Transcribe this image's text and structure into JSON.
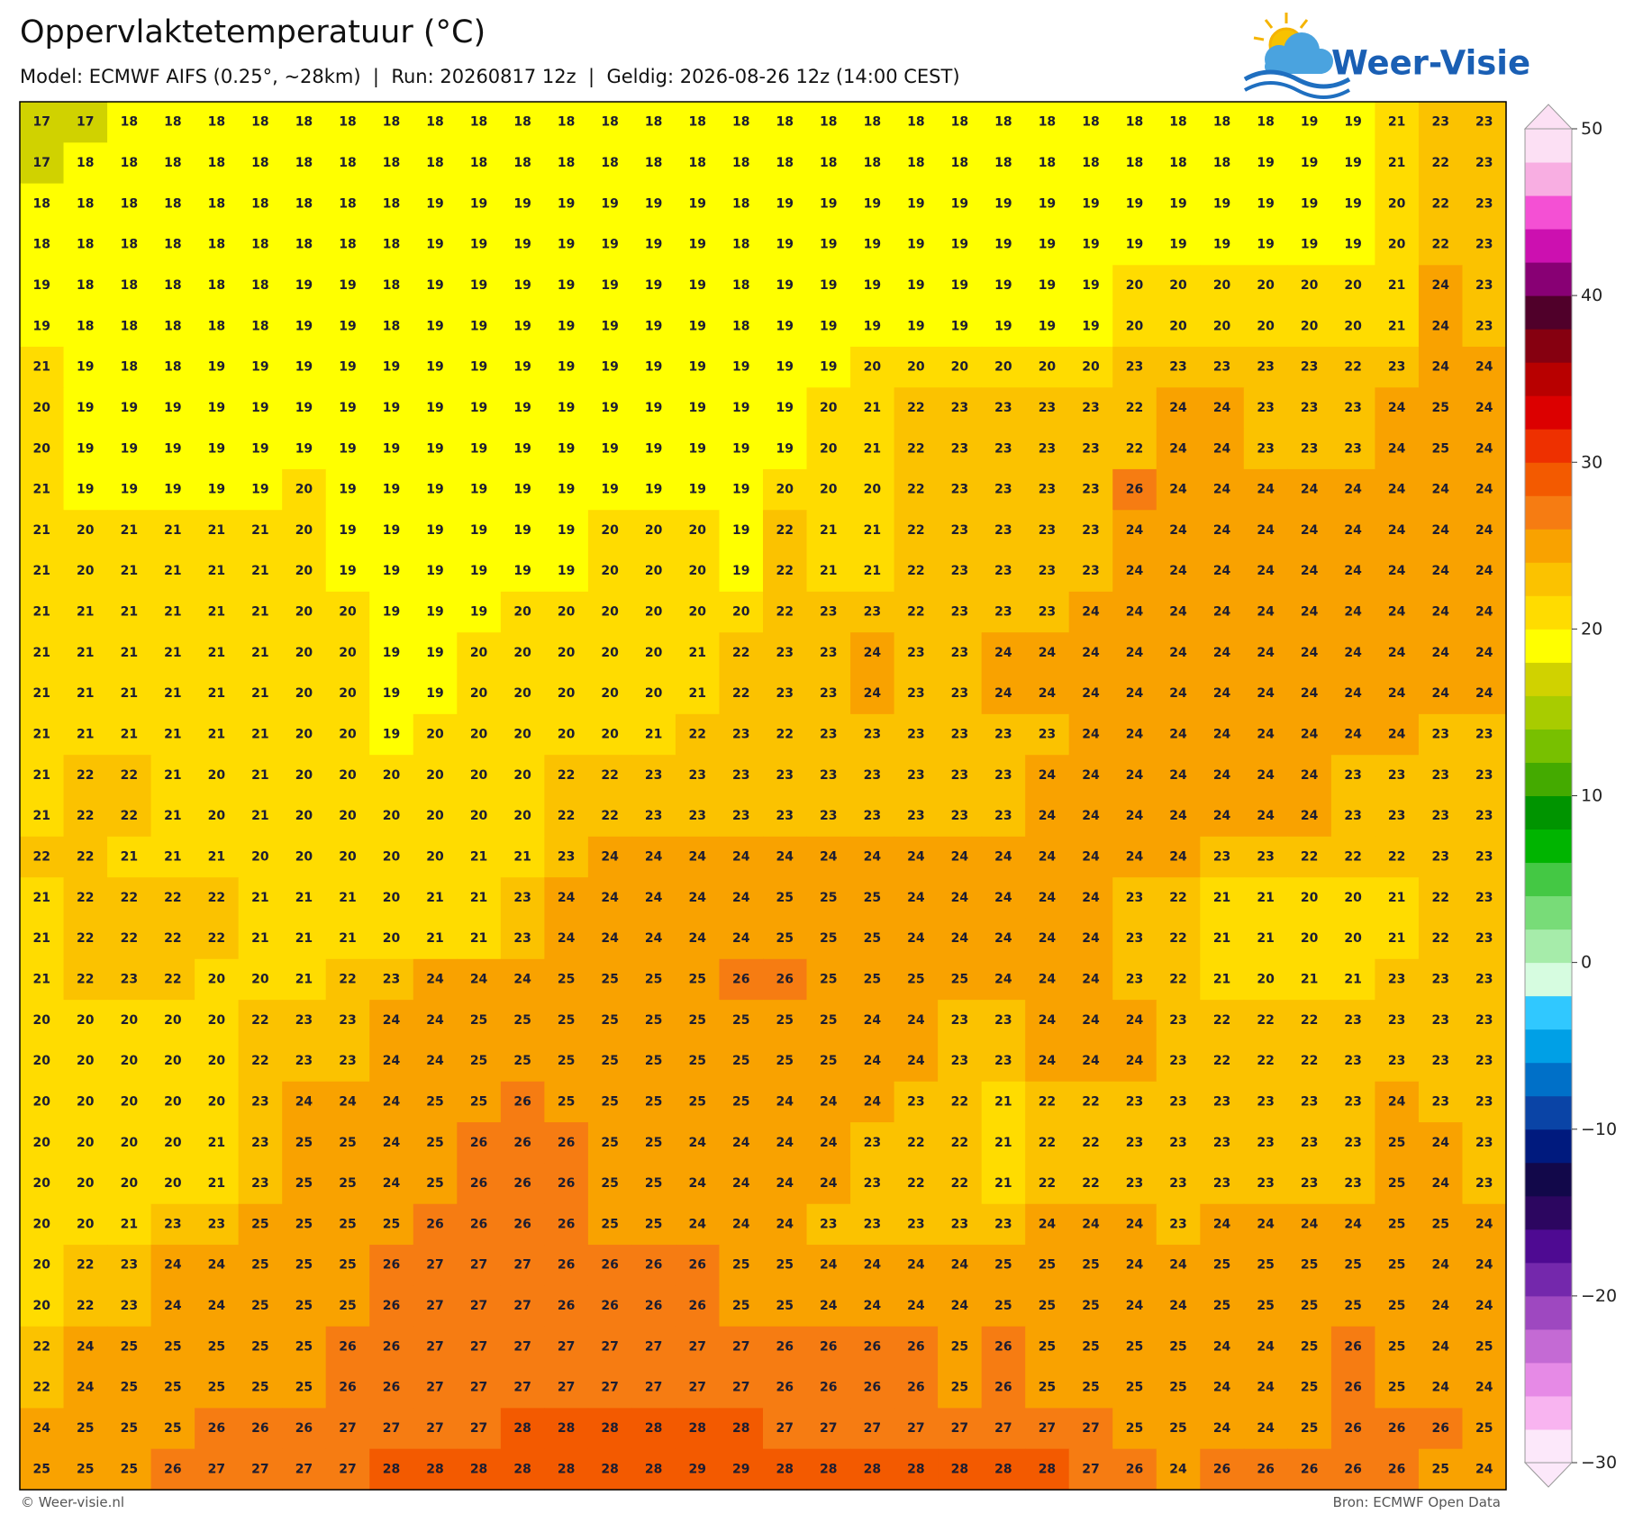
{
  "title": "Oppervlaktetemperatuur (°C)",
  "subtitle": "Model: ECMWF AIFS (0.25°, ~28km)  |  Run: 20260817 12z  |  Geldig: 2026-08-26 12z (14:00 CEST)",
  "logo": "Weer-Visie",
  "map": {
    "type": "grid",
    "values": [
      [
        17,
        17,
        18,
        18,
        18,
        18,
        18,
        18,
        18,
        18,
        18,
        18,
        18,
        18,
        18,
        18,
        18,
        18,
        18,
        18,
        18,
        18,
        18,
        18,
        18,
        18,
        18,
        18,
        18,
        19,
        19,
        21,
        23,
        23
      ],
      [
        17,
        18,
        18,
        18,
        18,
        18,
        18,
        18,
        18,
        18,
        18,
        18,
        18,
        18,
        18,
        18,
        18,
        18,
        18,
        18,
        18,
        18,
        18,
        18,
        18,
        18,
        18,
        18,
        19,
        19,
        19,
        21,
        22,
        23
      ],
      [
        18,
        18,
        18,
        18,
        18,
        18,
        18,
        18,
        18,
        19,
        19,
        19,
        19,
        19,
        19,
        19,
        18,
        19,
        19,
        19,
        19,
        19,
        19,
        19,
        19,
        19,
        19,
        19,
        19,
        19,
        19,
        20,
        22,
        23
      ],
      [
        18,
        18,
        18,
        18,
        18,
        18,
        18,
        18,
        18,
        19,
        19,
        19,
        19,
        19,
        19,
        19,
        18,
        19,
        19,
        19,
        19,
        19,
        19,
        19,
        19,
        19,
        19,
        19,
        19,
        19,
        19,
        20,
        22,
        23
      ],
      [
        19,
        18,
        18,
        18,
        18,
        18,
        19,
        19,
        18,
        19,
        19,
        19,
        19,
        19,
        19,
        19,
        18,
        19,
        19,
        19,
        19,
        19,
        19,
        19,
        19,
        20,
        20,
        20,
        20,
        20,
        20,
        21,
        24,
        23
      ],
      [
        19,
        18,
        18,
        18,
        18,
        18,
        19,
        19,
        18,
        19,
        19,
        19,
        19,
        19,
        19,
        19,
        18,
        19,
        19,
        19,
        19,
        19,
        19,
        19,
        19,
        20,
        20,
        20,
        20,
        20,
        20,
        21,
        24,
        23
      ],
      [
        21,
        19,
        18,
        18,
        19,
        19,
        19,
        19,
        19,
        19,
        19,
        19,
        19,
        19,
        19,
        19,
        19,
        19,
        19,
        20,
        20,
        20,
        20,
        20,
        20,
        23,
        23,
        23,
        23,
        23,
        22,
        23,
        24,
        24
      ],
      [
        20,
        19,
        19,
        19,
        19,
        19,
        19,
        19,
        19,
        19,
        19,
        19,
        19,
        19,
        19,
        19,
        19,
        19,
        20,
        21,
        22,
        23,
        23,
        23,
        23,
        22,
        24,
        24,
        23,
        23,
        23,
        24,
        25,
        24
      ],
      [
        20,
        19,
        19,
        19,
        19,
        19,
        19,
        19,
        19,
        19,
        19,
        19,
        19,
        19,
        19,
        19,
        19,
        19,
        20,
        21,
        22,
        23,
        23,
        23,
        23,
        22,
        24,
        24,
        23,
        23,
        23,
        24,
        25,
        24
      ],
      [
        21,
        19,
        19,
        19,
        19,
        19,
        20,
        19,
        19,
        19,
        19,
        19,
        19,
        19,
        19,
        19,
        19,
        20,
        20,
        20,
        22,
        23,
        23,
        23,
        23,
        26,
        24,
        24,
        24,
        24,
        24,
        24,
        24,
        24
      ],
      [
        21,
        20,
        21,
        21,
        21,
        21,
        20,
        19,
        19,
        19,
        19,
        19,
        19,
        20,
        20,
        20,
        19,
        22,
        21,
        21,
        22,
        23,
        23,
        23,
        23,
        24,
        24,
        24,
        24,
        24,
        24,
        24,
        24,
        24
      ],
      [
        21,
        20,
        21,
        21,
        21,
        21,
        20,
        19,
        19,
        19,
        19,
        19,
        19,
        20,
        20,
        20,
        19,
        22,
        21,
        21,
        22,
        23,
        23,
        23,
        23,
        24,
        24,
        24,
        24,
        24,
        24,
        24,
        24,
        24
      ],
      [
        21,
        21,
        21,
        21,
        21,
        21,
        20,
        20,
        19,
        19,
        19,
        20,
        20,
        20,
        20,
        20,
        20,
        22,
        23,
        23,
        22,
        23,
        23,
        23,
        24,
        24,
        24,
        24,
        24,
        24,
        24,
        24,
        24,
        24
      ],
      [
        21,
        21,
        21,
        21,
        21,
        21,
        20,
        20,
        19,
        19,
        20,
        20,
        20,
        20,
        20,
        21,
        22,
        23,
        23,
        24,
        23,
        23,
        24,
        24,
        24,
        24,
        24,
        24,
        24,
        24,
        24,
        24,
        24,
        24
      ],
      [
        21,
        21,
        21,
        21,
        21,
        21,
        20,
        20,
        19,
        19,
        20,
        20,
        20,
        20,
        20,
        21,
        22,
        23,
        23,
        24,
        23,
        23,
        24,
        24,
        24,
        24,
        24,
        24,
        24,
        24,
        24,
        24,
        24,
        24
      ],
      [
        21,
        21,
        21,
        21,
        21,
        21,
        20,
        20,
        19,
        20,
        20,
        20,
        20,
        20,
        21,
        22,
        23,
        22,
        23,
        23,
        23,
        23,
        23,
        23,
        24,
        24,
        24,
        24,
        24,
        24,
        24,
        24,
        23,
        23
      ],
      [
        21,
        22,
        22,
        21,
        20,
        21,
        20,
        20,
        20,
        20,
        20,
        20,
        22,
        22,
        23,
        23,
        23,
        23,
        23,
        23,
        23,
        23,
        23,
        24,
        24,
        24,
        24,
        24,
        24,
        24,
        23,
        23,
        23,
        23
      ],
      [
        21,
        22,
        22,
        21,
        20,
        21,
        20,
        20,
        20,
        20,
        20,
        20,
        22,
        22,
        23,
        23,
        23,
        23,
        23,
        23,
        23,
        23,
        23,
        24,
        24,
        24,
        24,
        24,
        24,
        24,
        23,
        23,
        23,
        23
      ],
      [
        22,
        22,
        21,
        21,
        21,
        20,
        20,
        20,
        20,
        20,
        21,
        21,
        23,
        24,
        24,
        24,
        24,
        24,
        24,
        24,
        24,
        24,
        24,
        24,
        24,
        24,
        24,
        23,
        23,
        22,
        22,
        22,
        23,
        23
      ],
      [
        21,
        22,
        22,
        22,
        22,
        21,
        21,
        21,
        20,
        21,
        21,
        23,
        24,
        24,
        24,
        24,
        24,
        25,
        25,
        25,
        24,
        24,
        24,
        24,
        24,
        23,
        22,
        21,
        21,
        20,
        20,
        21,
        22,
        23
      ],
      [
        21,
        22,
        22,
        22,
        22,
        21,
        21,
        21,
        20,
        21,
        21,
        23,
        24,
        24,
        24,
        24,
        24,
        25,
        25,
        25,
        24,
        24,
        24,
        24,
        24,
        23,
        22,
        21,
        21,
        20,
        20,
        21,
        22,
        23
      ],
      [
        21,
        22,
        23,
        22,
        20,
        20,
        21,
        22,
        23,
        24,
        24,
        24,
        25,
        25,
        25,
        25,
        26,
        26,
        25,
        25,
        25,
        25,
        24,
        24,
        24,
        23,
        22,
        21,
        20,
        21,
        21,
        23,
        23,
        23
      ],
      [
        20,
        20,
        20,
        20,
        20,
        22,
        23,
        23,
        24,
        24,
        25,
        25,
        25,
        25,
        25,
        25,
        25,
        25,
        25,
        24,
        24,
        23,
        23,
        24,
        24,
        24,
        23,
        22,
        22,
        22,
        23,
        23,
        23,
        23
      ],
      [
        20,
        20,
        20,
        20,
        20,
        22,
        23,
        23,
        24,
        24,
        25,
        25,
        25,
        25,
        25,
        25,
        25,
        25,
        25,
        24,
        24,
        23,
        23,
        24,
        24,
        24,
        23,
        22,
        22,
        22,
        23,
        23,
        23,
        23
      ],
      [
        20,
        20,
        20,
        20,
        20,
        23,
        24,
        24,
        24,
        25,
        25,
        26,
        25,
        25,
        25,
        25,
        25,
        24,
        24,
        24,
        23,
        22,
        21,
        22,
        22,
        23,
        23,
        23,
        23,
        23,
        23,
        24,
        23,
        23
      ],
      [
        20,
        20,
        20,
        20,
        21,
        23,
        25,
        25,
        24,
        25,
        26,
        26,
        26,
        25,
        25,
        24,
        24,
        24,
        24,
        23,
        22,
        22,
        21,
        22,
        22,
        23,
        23,
        23,
        23,
        23,
        23,
        25,
        24,
        23
      ],
      [
        20,
        20,
        20,
        20,
        21,
        23,
        25,
        25,
        24,
        25,
        26,
        26,
        26,
        25,
        25,
        24,
        24,
        24,
        24,
        23,
        22,
        22,
        21,
        22,
        22,
        23,
        23,
        23,
        23,
        23,
        23,
        25,
        24,
        23
      ],
      [
        20,
        20,
        21,
        23,
        23,
        25,
        25,
        25,
        25,
        26,
        26,
        26,
        26,
        25,
        25,
        24,
        24,
        24,
        23,
        23,
        23,
        23,
        23,
        24,
        24,
        24,
        23,
        24,
        24,
        24,
        24,
        25,
        25,
        24
      ],
      [
        20,
        22,
        23,
        24,
        24,
        25,
        25,
        25,
        26,
        27,
        27,
        27,
        26,
        26,
        26,
        26,
        25,
        25,
        24,
        24,
        24,
        24,
        25,
        25,
        25,
        24,
        24,
        25,
        25,
        25,
        25,
        25,
        24,
        24
      ],
      [
        20,
        22,
        23,
        24,
        24,
        25,
        25,
        25,
        26,
        27,
        27,
        27,
        26,
        26,
        26,
        26,
        25,
        25,
        24,
        24,
        24,
        24,
        25,
        25,
        25,
        24,
        24,
        25,
        25,
        25,
        25,
        25,
        24,
        24
      ],
      [
        22,
        24,
        25,
        25,
        25,
        25,
        25,
        26,
        26,
        27,
        27,
        27,
        27,
        27,
        27,
        27,
        27,
        26,
        26,
        26,
        26,
        25,
        26,
        25,
        25,
        25,
        25,
        24,
        24,
        25,
        26,
        25,
        24,
        25
      ],
      [
        22,
        24,
        25,
        25,
        25,
        25,
        25,
        26,
        26,
        27,
        27,
        27,
        27,
        27,
        27,
        27,
        27,
        26,
        26,
        26,
        26,
        25,
        26,
        25,
        25,
        25,
        25,
        24,
        24,
        25,
        26,
        25,
        24,
        24
      ],
      [
        24,
        25,
        25,
        25,
        26,
        26,
        26,
        27,
        27,
        27,
        27,
        28,
        28,
        28,
        28,
        28,
        28,
        27,
        27,
        27,
        27,
        27,
        27,
        27,
        27,
        25,
        25,
        24,
        24,
        25,
        26,
        26,
        26,
        25
      ],
      [
        25,
        25,
        25,
        26,
        27,
        27,
        27,
        27,
        28,
        28,
        28,
        28,
        28,
        28,
        28,
        29,
        29,
        28,
        28,
        28,
        28,
        28,
        28,
        28,
        27,
        26,
        24,
        26,
        26,
        26,
        26,
        26,
        25,
        24
      ]
    ]
  },
  "colorbar": {
    "lim": [
      -30,
      50
    ],
    "ticks": [
      {
        "value": -30,
        "label": "−30"
      },
      {
        "value": -20,
        "label": "−20"
      },
      {
        "value": -10,
        "label": "−10"
      },
      0,
      10,
      20,
      30,
      40,
      50
    ],
    "colors": [
      "#fce8fa",
      "#f8b4f0",
      "#e68ae6",
      "#c46ad4",
      "#9e48c0",
      "#7428ac",
      "#4e0a92",
      "#2c0660",
      "#12084a",
      "#001a7e",
      "#0a44a6",
      "#0070c8",
      "#00a0e6",
      "#30c8ff",
      "#d6fce0",
      "#a6ecaa",
      "#78dc78",
      "#44c844",
      "#00b400",
      "#009400",
      "#44aa00",
      "#78c000",
      "#a8cc00",
      "#d0d200",
      "#ffff00",
      "#ffdc00",
      "#fbc200",
      "#f9a200",
      "#f67c12",
      "#f35a00",
      "#ee3000",
      "#dc0000",
      "#b80000",
      "#860010",
      "#50002a",
      "#880074",
      "#cc10b0",
      "#f450d4",
      "#f8aee2",
      "#fce0f4"
    ]
  },
  "footer": {
    "left": "© Weer-visie.nl",
    "right": "Bron: ECMWF Open Data"
  }
}
